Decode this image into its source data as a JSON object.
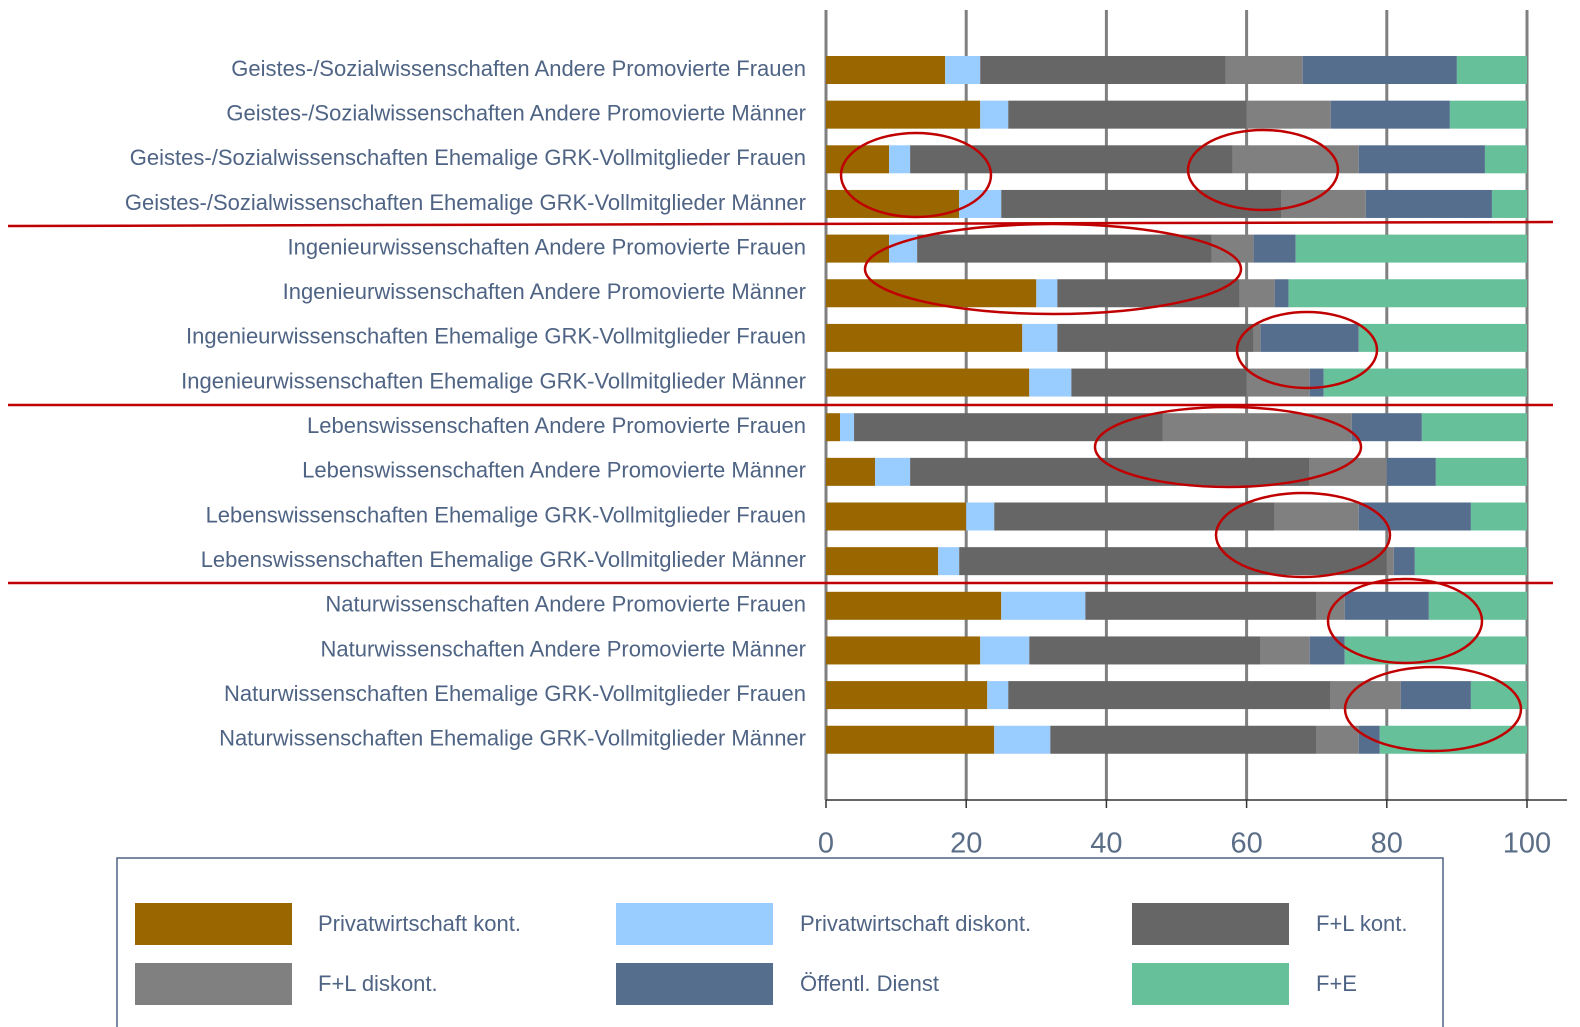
{
  "chart_data": {
    "type": "stacked_barh",
    "categories": [
      "Geistes-/Sozialwissenschaften Andere Promovierte Frauen",
      "Geistes-/Sozialwissenschaften Andere Promovierte Männer",
      "Geistes-/Sozialwissenschaften Ehemalige GRK-Vollmitglieder Frauen",
      "Geistes-/Sozialwissenschaften Ehemalige GRK-Vollmitglieder Männer",
      "Ingenieurwissenschaften Andere Promovierte Frauen",
      "Ingenieurwissenschaften Andere Promovierte Männer",
      "Ingenieurwissenschaften Ehemalige GRK-Vollmitglieder Frauen",
      "Ingenieurwissenschaften Ehemalige GRK-Vollmitglieder Männer",
      "Lebenswissenschaften Andere Promovierte Frauen",
      "Lebenswissenschaften Andere Promovierte Männer",
      "Lebenswissenschaften Ehemalige GRK-Vollmitglieder Frauen",
      "Lebenswissenschaften Ehemalige GRK-Vollmitglieder Männer",
      "Naturwissenschaften Andere Promovierte Frauen",
      "Naturwissenschaften Andere Promovierte Männer",
      "Naturwissenschaften Ehemalige GRK-Vollmitglieder Frauen",
      "Naturwissenschaften Ehemalige GRK-Vollmitglieder Männer"
    ],
    "series": [
      {
        "name": "Privatwirtschaft kont.",
        "color": "#996600",
        "values": [
          17,
          22,
          9,
          19,
          9,
          30,
          28,
          29,
          2,
          7,
          20,
          16,
          25,
          22,
          23,
          24
        ]
      },
      {
        "name": "Privatwirtschaft diskont.",
        "color": "#99ccff",
        "values": [
          5,
          4,
          3,
          6,
          4,
          3,
          5,
          6,
          2,
          5,
          4,
          3,
          12,
          7,
          3,
          8
        ]
      },
      {
        "name": "F+L kont.",
        "color": "#666666",
        "values": [
          35,
          34,
          46,
          40,
          42,
          26,
          28,
          25,
          44,
          57,
          40,
          61,
          33,
          33,
          46,
          38
        ]
      },
      {
        "name": "F+L diskont.",
        "color": "#808080",
        "values": [
          11,
          12,
          18,
          12,
          6,
          5,
          1,
          9,
          27,
          11,
          12,
          1,
          4,
          7,
          10,
          6
        ]
      },
      {
        "name": "Öffentl. Dienst",
        "color": "#556e8e",
        "values": [
          22,
          17,
          18,
          18,
          6,
          2,
          14,
          2,
          10,
          7,
          16,
          3,
          12,
          5,
          10,
          3
        ]
      },
      {
        "name": "F+E",
        "color": "#66c09a",
        "values": [
          10,
          11,
          6,
          5,
          33,
          34,
          24,
          29,
          15,
          13,
          8,
          16,
          14,
          26,
          8,
          21
        ]
      }
    ],
    "xlim": [
      0,
      100
    ],
    "xticks": [
      0,
      20,
      40,
      60,
      80,
      100
    ],
    "grid": true
  }
}
